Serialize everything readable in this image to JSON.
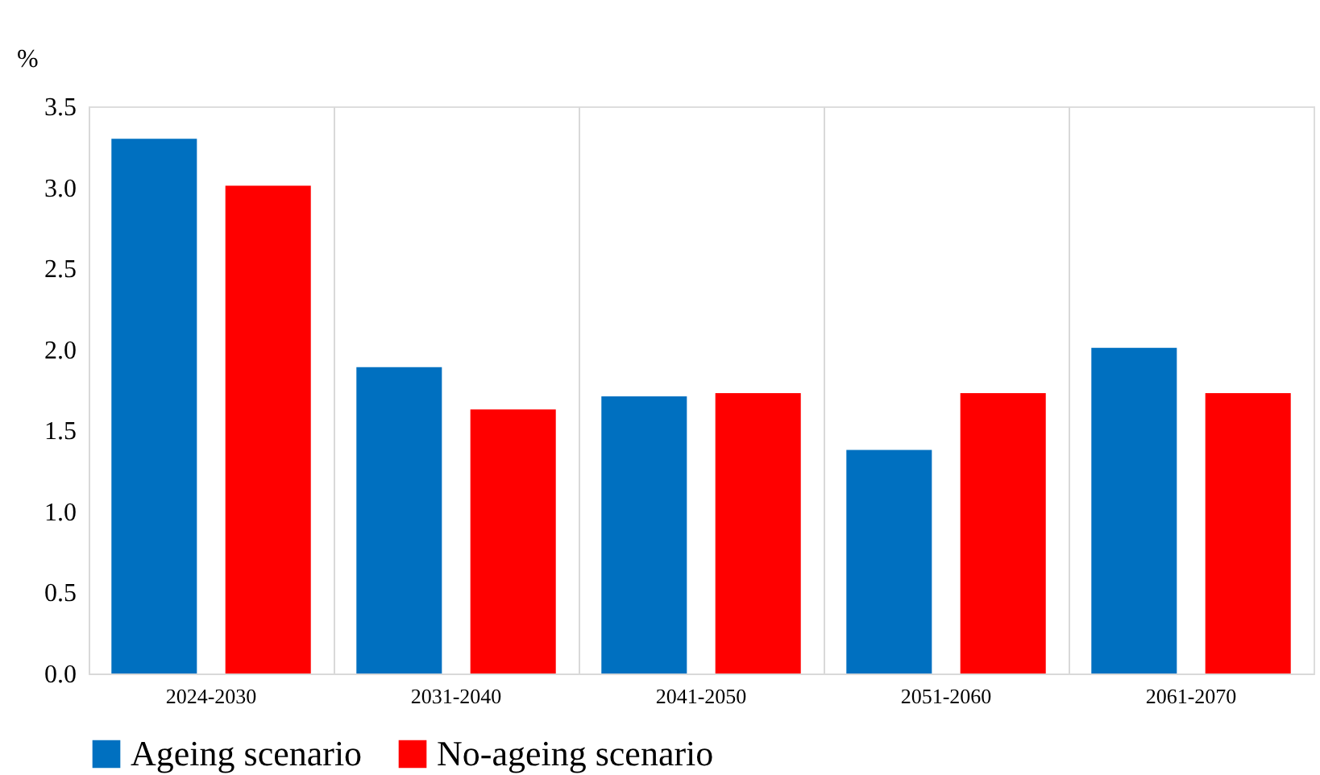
{
  "chart_data": {
    "type": "bar",
    "ylabel": "%",
    "categories": [
      "2024-2030",
      "2031-2040",
      "2041-2050",
      "2051-2060",
      "2061-2070"
    ],
    "series": [
      {
        "name": "Ageing scenario",
        "color": "#0070c0",
        "values": [
          3.3,
          1.89,
          1.71,
          1.38,
          2.01
        ]
      },
      {
        "name": "No-ageing scenario",
        "color": "#ff0000",
        "values": [
          3.01,
          1.63,
          1.73,
          1.73,
          1.73
        ]
      }
    ],
    "ylim": [
      0,
      3.5
    ],
    "yticks": [
      {
        "value": 0,
        "label": "0.0"
      },
      {
        "value": 0.5,
        "label": "0.5"
      },
      {
        "value": 1,
        "label": "1.0"
      },
      {
        "value": 1.5,
        "label": "1.5"
      },
      {
        "value": 2,
        "label": "2.0"
      },
      {
        "value": 2.5,
        "label": "2.5"
      },
      {
        "value": 3,
        "label": "3.0"
      },
      {
        "value": 3.5,
        "label": "3.5"
      }
    ],
    "grid": "x",
    "legend": "bottom"
  }
}
